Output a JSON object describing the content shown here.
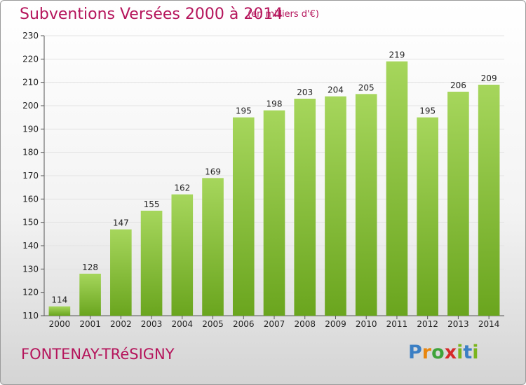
{
  "title": "Subventions Versées 2000 à 2014",
  "unit_note": "(en milliers d'€)",
  "city": "FONTENAY-TRéSIGNY",
  "logo": {
    "text": "Proxiti",
    "letters": [
      "P",
      "r",
      "o",
      "x",
      "i",
      "t",
      "i"
    ]
  },
  "colors": {
    "title": "#b5145b",
    "bar_light": "#a6d65c",
    "bar_dark": "#6aa51e"
  },
  "chart_data": {
    "type": "bar",
    "title": "Subventions Versées 2000 à 2014",
    "xlabel": "",
    "ylabel": "",
    "categories": [
      "2000",
      "2001",
      "2002",
      "2003",
      "2004",
      "2005",
      "2006",
      "2007",
      "2008",
      "2009",
      "2010",
      "2011",
      "2012",
      "2013",
      "2014"
    ],
    "values": [
      114,
      128,
      147,
      155,
      162,
      169,
      195,
      198,
      203,
      204,
      205,
      219,
      195,
      206,
      209
    ],
    "ylim": [
      110,
      230
    ],
    "yticks": [
      110,
      120,
      130,
      140,
      150,
      160,
      170,
      180,
      190,
      200,
      210,
      220,
      230
    ],
    "grid": true,
    "legend": "none"
  }
}
